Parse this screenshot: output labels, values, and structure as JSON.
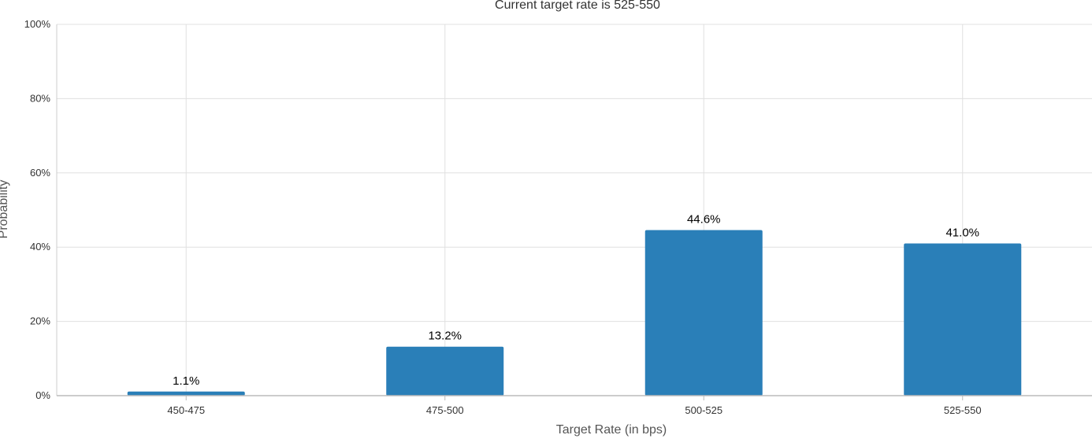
{
  "chart_data": {
    "type": "bar",
    "title": "Current target rate is 525-550",
    "xlabel": "Target Rate (in bps)",
    "ylabel": "Probability",
    "categories": [
      "450-475",
      "475-500",
      "500-525",
      "525-550"
    ],
    "values": [
      1.1,
      13.2,
      44.6,
      41.0
    ],
    "data_labels": [
      "1.1%",
      "13.2%",
      "44.6%",
      "41.0%"
    ],
    "ylim": [
      0,
      100
    ],
    "yticks": [
      0,
      20,
      40,
      60,
      80,
      100
    ],
    "ytick_labels": [
      "0%",
      "20%",
      "40%",
      "60%",
      "80%",
      "100%"
    ],
    "grid": true,
    "legend": "none",
    "bar_color": "#2a7fb8"
  }
}
